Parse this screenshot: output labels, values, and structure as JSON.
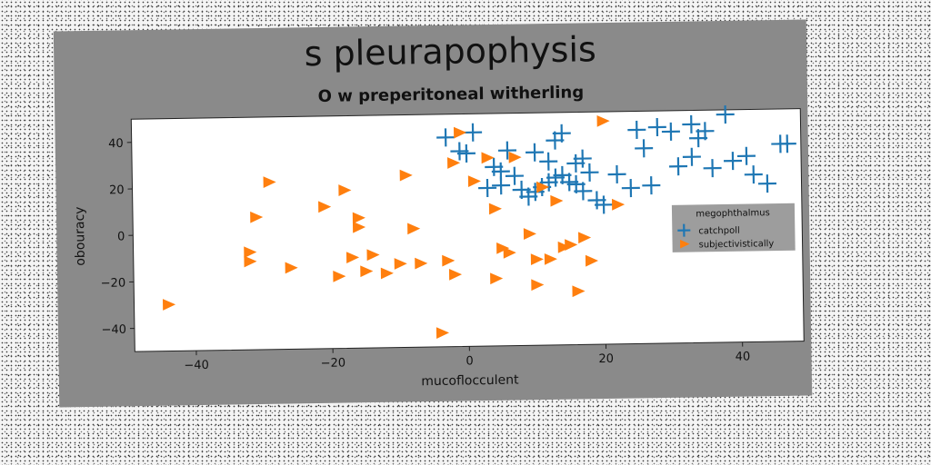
{
  "chart_data": {
    "type": "scatter",
    "title": "s pleurapophysis",
    "subtitle": "O w preperitoneal witherling",
    "xlabel": "mucoflocculent",
    "ylabel": "obouracy",
    "xlim": [
      -49,
      49
    ],
    "ylim": [
      -50,
      50
    ],
    "xticks": [
      -40,
      -20,
      0,
      20,
      40
    ],
    "yticks": [
      -40,
      -20,
      0,
      20,
      40
    ],
    "tick_labels_x": [
      "−40",
      "−20",
      "0",
      "20",
      "40"
    ],
    "tick_labels_y": [
      "−40",
      "−20",
      "0",
      "20",
      "40"
    ],
    "grid": false,
    "legend": {
      "title": "megophthalmus",
      "placement": "right"
    },
    "series": [
      {
        "name": "catchpoll",
        "marker": "plus",
        "color": "#1f77b4",
        "points": [
          [
            -3,
            40
          ],
          [
            1,
            42
          ],
          [
            -1,
            34
          ],
          [
            0,
            33
          ],
          [
            4,
            27
          ],
          [
            5,
            25
          ],
          [
            7,
            23
          ],
          [
            5,
            19
          ],
          [
            3,
            18
          ],
          [
            8,
            17
          ],
          [
            10,
            16
          ],
          [
            9,
            14
          ],
          [
            11,
            18
          ],
          [
            12,
            20
          ],
          [
            13,
            22
          ],
          [
            14,
            23
          ],
          [
            15,
            20
          ],
          [
            16,
            19
          ],
          [
            17,
            30
          ],
          [
            13,
            38
          ],
          [
            14,
            41
          ],
          [
            16,
            28
          ],
          [
            17,
            16
          ],
          [
            19,
            12
          ],
          [
            20,
            10
          ],
          [
            22,
            23
          ],
          [
            24,
            17
          ],
          [
            27,
            18
          ],
          [
            25,
            42
          ],
          [
            28,
            43
          ],
          [
            30,
            41
          ],
          [
            33,
            44
          ],
          [
            34,
            38
          ],
          [
            35,
            41
          ],
          [
            38,
            48
          ],
          [
            26,
            34
          ],
          [
            33,
            30
          ],
          [
            36,
            25
          ],
          [
            39,
            28
          ],
          [
            41,
            30
          ],
          [
            42,
            22
          ],
          [
            44,
            18
          ],
          [
            46,
            35
          ],
          [
            47,
            35
          ],
          [
            31,
            26
          ],
          [
            18,
            24
          ],
          [
            12,
            29
          ],
          [
            6,
            34
          ],
          [
            10,
            33
          ]
        ]
      },
      {
        "name": "subjectivistically",
        "marker": "triangle-right",
        "color": "#ff7f0e",
        "points": [
          [
            -44,
            -30
          ],
          [
            -32,
            -8
          ],
          [
            -32,
            -12
          ],
          [
            -31,
            7
          ],
          [
            -29,
            22
          ],
          [
            -26,
            -15
          ],
          [
            -21,
            11
          ],
          [
            -19,
            -19
          ],
          [
            -18,
            18
          ],
          [
            -17,
            -11
          ],
          [
            -16,
            6
          ],
          [
            -16,
            2
          ],
          [
            -15,
            -17
          ],
          [
            -14,
            -10
          ],
          [
            -12,
            -18
          ],
          [
            -10,
            -14
          ],
          [
            -9,
            24
          ],
          [
            -8,
            1
          ],
          [
            -7,
            -14
          ],
          [
            -4,
            -44
          ],
          [
            -3,
            -13
          ],
          [
            -2,
            -19
          ],
          [
            -2,
            29
          ],
          [
            -1,
            42
          ],
          [
            1,
            21
          ],
          [
            3,
            31
          ],
          [
            4,
            -21
          ],
          [
            4,
            9
          ],
          [
            5,
            -8
          ],
          [
            6,
            -10
          ],
          [
            7,
            31
          ],
          [
            9,
            -2
          ],
          [
            10,
            -13
          ],
          [
            10,
            -24
          ],
          [
            12,
            -13
          ],
          [
            13,
            12
          ],
          [
            14,
            -8
          ],
          [
            15,
            -7
          ],
          [
            16,
            -27
          ],
          [
            17,
            -4
          ],
          [
            18,
            -14
          ],
          [
            20,
            46
          ],
          [
            22,
            10
          ],
          [
            11,
            18
          ]
        ]
      }
    ]
  }
}
